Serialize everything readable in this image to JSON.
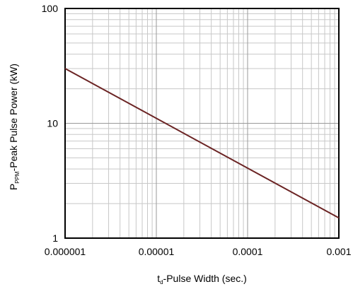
{
  "chart_data": {
    "type": "line",
    "title": "",
    "x_scale": "log",
    "y_scale": "log",
    "xlim": [
      1e-06,
      0.001
    ],
    "ylim": [
      1,
      100
    ],
    "x_ticks": [
      1e-06,
      1e-05,
      0.0001,
      0.001
    ],
    "x_tick_labels": [
      "0.000001",
      "0.00001",
      "0.0001",
      "0.001"
    ],
    "y_ticks": [
      1,
      10,
      100
    ],
    "y_tick_labels": [
      "1",
      "10",
      "100"
    ],
    "xlabel": {
      "main": "t",
      "sub": "d",
      "rest": "-Pulse Width (sec.)"
    },
    "ylabel": {
      "main": "P",
      "sub": "PPM",
      "rest": "-Peak Pulse Power (kW)"
    },
    "grid": true,
    "legend": "none",
    "series": [
      {
        "color": "#6b2424",
        "x": [
          1e-06,
          0.001
        ],
        "y": [
          30,
          1.5
        ]
      }
    ]
  }
}
